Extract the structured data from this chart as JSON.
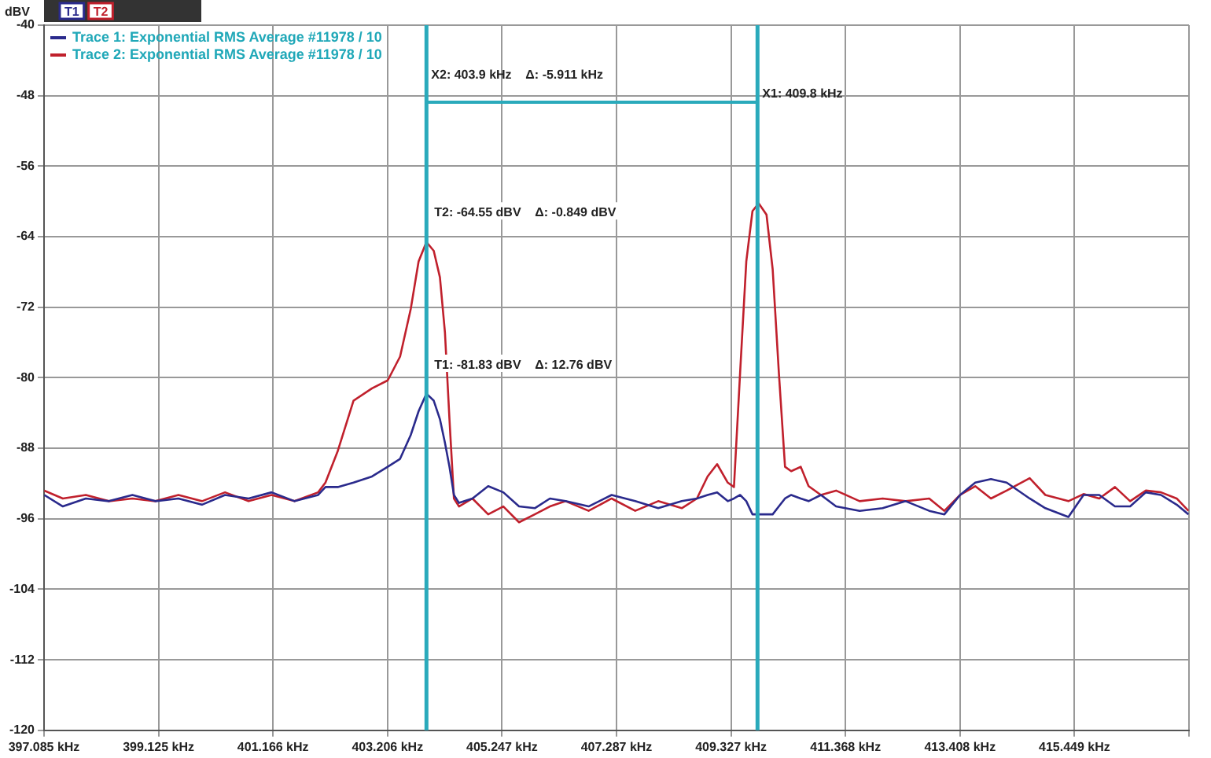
{
  "chart_data": {
    "type": "line",
    "ylabel": "dBV",
    "legend": "top left",
    "grid": true,
    "marker": "none",
    "line_style": "solid",
    "x": [
      397.09,
      397.42,
      397.83,
      398.24,
      398.66,
      399.07,
      399.48,
      399.9,
      400.31,
      400.73,
      401.14,
      401.55,
      401.97,
      402.1,
      402.32,
      402.6,
      402.93,
      403.21,
      403.43,
      403.62,
      403.76,
      403.9,
      404.03,
      404.14,
      404.23,
      404.31,
      404.39,
      404.48,
      404.72,
      405.0,
      405.27,
      405.55,
      405.83,
      406.1,
      406.38,
      406.79,
      407.2,
      407.62,
      408.03,
      408.45,
      408.72,
      408.91,
      409.08,
      409.27,
      409.38,
      409.49,
      409.6,
      409.71,
      409.82,
      409.96,
      410.07,
      410.18,
      410.29,
      410.4,
      410.57,
      410.71,
      410.93,
      411.2,
      411.62,
      412.03,
      412.44,
      412.86,
      413.13,
      413.41,
      413.68,
      413.96,
      414.24,
      414.65,
      414.93,
      415.34,
      415.61,
      415.89,
      416.17,
      416.44,
      416.72,
      416.99,
      417.27,
      417.48
    ],
    "series": [
      {
        "name": "Trace 1: Exponential RMS Average #11978 / 10",
        "color": "#2a2a8c",
        "values": [
          -93.3,
          -94.6,
          -93.7,
          -94.0,
          -93.3,
          -94.0,
          -93.7,
          -94.4,
          -93.3,
          -93.7,
          -93.0,
          -94.0,
          -93.3,
          -92.4,
          -92.4,
          -91.9,
          -91.2,
          -90.1,
          -89.2,
          -86.5,
          -83.8,
          -81.8,
          -82.6,
          -84.7,
          -87.4,
          -90.1,
          -93.3,
          -94.2,
          -93.7,
          -92.3,
          -93.0,
          -94.6,
          -94.8,
          -93.7,
          -94.0,
          -94.6,
          -93.3,
          -94.0,
          -94.8,
          -94.0,
          -93.7,
          -93.3,
          -93.0,
          -94.0,
          -93.7,
          -93.3,
          -94.0,
          -95.5,
          -95.5,
          -95.5,
          -95.5,
          -94.6,
          -93.7,
          -93.3,
          -93.7,
          -94.0,
          -93.3,
          -94.6,
          -95.1,
          -94.8,
          -94.0,
          -95.1,
          -95.5,
          -93.3,
          -91.9,
          -91.5,
          -91.9,
          -93.7,
          -94.8,
          -95.8,
          -93.3,
          -93.3,
          -94.6,
          -94.6,
          -93.0,
          -93.3,
          -94.4,
          -95.5
        ]
      },
      {
        "name": "Trace 2: Exponential RMS Average #11978 / 10",
        "color": "#c0202c",
        "values": [
          -92.8,
          -93.7,
          -93.3,
          -94.0,
          -93.7,
          -94.0,
          -93.3,
          -94.0,
          -93.0,
          -94.0,
          -93.3,
          -94.0,
          -93.0,
          -91.9,
          -88.3,
          -82.6,
          -81.2,
          -80.3,
          -77.6,
          -72.2,
          -66.8,
          -64.6,
          -65.6,
          -68.6,
          -74.9,
          -84.7,
          -93.7,
          -94.6,
          -93.7,
          -95.5,
          -94.6,
          -96.4,
          -95.5,
          -94.6,
          -94.0,
          -95.1,
          -93.7,
          -95.1,
          -94.0,
          -94.8,
          -93.7,
          -91.2,
          -89.8,
          -91.9,
          -92.4,
          -79.4,
          -66.8,
          -61.1,
          -60.2,
          -61.5,
          -67.7,
          -79.4,
          -90.1,
          -90.6,
          -90.1,
          -92.3,
          -93.3,
          -92.8,
          -94.0,
          -93.7,
          -94.0,
          -93.7,
          -95.1,
          -93.3,
          -92.3,
          -93.7,
          -92.8,
          -91.4,
          -93.3,
          -94.0,
          -93.2,
          -93.7,
          -92.4,
          -94.0,
          -92.8,
          -93.0,
          -93.7,
          -95.1
        ]
      }
    ],
    "xlim": [
      397.085,
      417.489
    ],
    "xticks": [
      {
        "value": 397.085,
        "label": "397.085 kHz"
      },
      {
        "value": 399.125,
        "label": "399.125 kHz"
      },
      {
        "value": 401.166,
        "label": "401.166 kHz"
      },
      {
        "value": 403.206,
        "label": "403.206 kHz"
      },
      {
        "value": 405.247,
        "label": "405.247 kHz"
      },
      {
        "value": 407.287,
        "label": "407.287 kHz"
      },
      {
        "value": 409.327,
        "label": "409.327 kHz"
      },
      {
        "value": 411.368,
        "label": "411.368 kHz"
      },
      {
        "value": 413.408,
        "label": "413.408 kHz"
      },
      {
        "value": 415.449,
        "label": "415.449 kHz"
      },
      {
        "value": 417.489,
        "label": null
      }
    ],
    "ylim": [
      -120,
      -40
    ],
    "yticks": [
      -120,
      -112,
      -104,
      -96,
      -88,
      -80,
      -72,
      -64,
      -56,
      -48,
      -40
    ],
    "ref_lines": [
      {
        "axis": "x",
        "value": 403.9,
        "label": "X2: 403.9 kHz    Δ: -5.911 kHz",
        "color": "#2aaabb"
      },
      {
        "axis": "x",
        "value": 409.8,
        "label": "X1: 409.8 kHz",
        "color": "#2aaabb"
      }
    ],
    "annotations": [
      "T1",
      "T2",
      {
        "text": "T2: -64.55 dBV    Δ: -0.849 dBV",
        "x": 403.9,
        "y": -64.55
      },
      {
        "text": "T1: -81.83 dBV    Δ: 12.76 dBV",
        "x": 403.9,
        "y": -81.83
      }
    ]
  }
}
